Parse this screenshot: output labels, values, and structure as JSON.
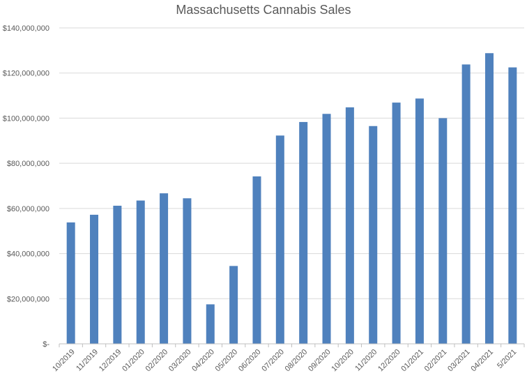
{
  "chart_data": {
    "type": "bar",
    "title": "Massachusetts Cannabis Sales",
    "xlabel": "",
    "ylabel": "",
    "categories": [
      "10/2019",
      "11/2019",
      "12/2019",
      "01/2020",
      "02/2020",
      "03/2020",
      "04/2020",
      "05/2020",
      "06/2020",
      "07/2020",
      "08/2020",
      "09/2020",
      "10/2020",
      "11/2020",
      "12/2020",
      "01/2021",
      "02/2021",
      "03/2021",
      "04/2021",
      "5/2021"
    ],
    "values": [
      53800000,
      57200000,
      61200000,
      63500000,
      66700000,
      64500000,
      17500000,
      34500000,
      74200000,
      92300000,
      98300000,
      101900000,
      104800000,
      96500000,
      106900000,
      108700000,
      100000000,
      123800000,
      128800000,
      122500000
    ],
    "ylim": [
      0,
      140000000
    ],
    "yticks": [
      0,
      20000000,
      40000000,
      60000000,
      80000000,
      100000000,
      120000000,
      140000000
    ],
    "ytick_labels": [
      "$-",
      "$20,000,000",
      "$40,000,000",
      "$60,000,000",
      "$80,000,000",
      "$100,000,000",
      "$120,000,000",
      "$140,000,000"
    ],
    "grid": true,
    "legend": "none",
    "colors": {
      "bar": "#4f81bd",
      "grid": "#d9d9d9",
      "axis": "#bfbfbf",
      "text": "#595959"
    }
  }
}
